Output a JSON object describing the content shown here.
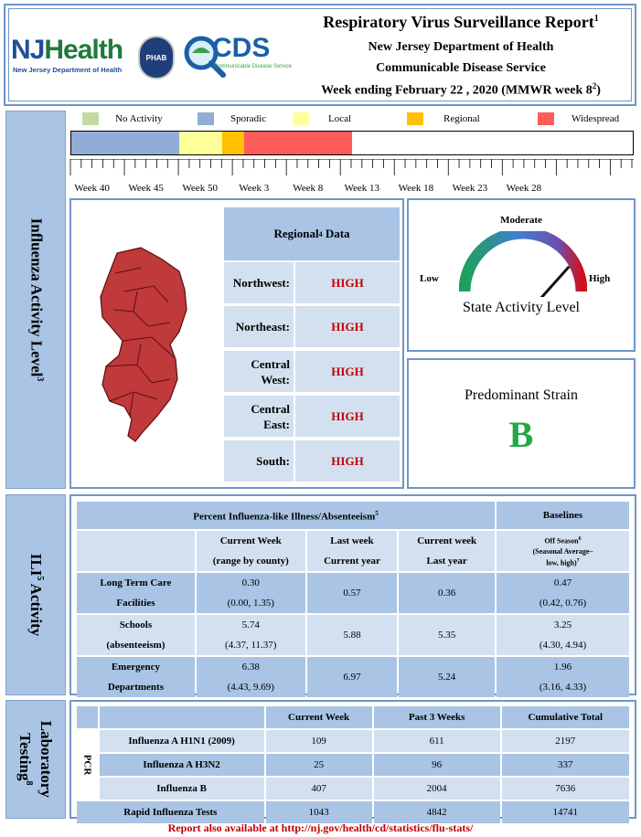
{
  "header": {
    "title": "Respiratory Virus Surveillance Report",
    "title_sup": "1",
    "line2": "New Jersey Department of Health",
    "line3": "Communicable Disease Service",
    "line4": "Week ending February 22 , 2020 (MMWR week 8",
    "line4_sup": "2",
    "line4_end": ")",
    "logo_nj_a": "NJ",
    "logo_nj_b": "Health",
    "logo_nj_sub": "New Jersey Department of Health",
    "logo_phab": "PHAB",
    "logo_cds": "CDS",
    "logo_cds_sub": "Communicable Disease Service"
  },
  "influenza_section": {
    "side_label": "Influenza Activity Level",
    "side_sup": "3",
    "legend": [
      {
        "label": "No Activity",
        "color": "#c3dba3"
      },
      {
        "label": "Sporadic",
        "color": "#92add5"
      },
      {
        "label": "Local",
        "color": "#ffff99"
      },
      {
        "label": "Regional",
        "color": "#ffc000"
      },
      {
        "label": "Widespread",
        "color": "#ff5b5b"
      }
    ],
    "timeline_weeks": [
      "Week 40",
      "Week 45",
      "Week 50",
      "Week 3",
      "Week 8",
      "Week 13",
      "Week 18",
      "Week 23",
      "Week 28"
    ],
    "timeline_segments": [
      {
        "level": "Sporadic",
        "weeks": 10,
        "color": "#92add5"
      },
      {
        "level": "Local",
        "weeks": 4,
        "color": "#ffff99"
      },
      {
        "level": "Regional",
        "weeks": 2,
        "color": "#ffc000"
      },
      {
        "level": "Widespread",
        "weeks": 10,
        "color": "#ff5b5b"
      }
    ],
    "regional": {
      "title": "Regional",
      "title_sup": "4",
      "title_end": " Data",
      "rows": [
        {
          "name": "Northwest:",
          "value": "HIGH"
        },
        {
          "name": "Northeast:",
          "value": "HIGH"
        },
        {
          "name": "Central West:",
          "value": "HIGH"
        },
        {
          "name": "Central East:",
          "value": "HIGH"
        },
        {
          "name": "South:",
          "value": "HIGH"
        }
      ]
    },
    "gauge": {
      "top_label": "Moderate",
      "low_label": "Low",
      "high_label": "High",
      "caption": "State Activity Level",
      "level": "High"
    },
    "strain": {
      "title": "Predominant Strain",
      "value": "B",
      "color": "#22a845"
    }
  },
  "ili_section": {
    "side_label": "ILI",
    "side_sup": "5",
    "side_end": " Activity",
    "header_main": "Percent Influenza-like Illness/Absenteeism",
    "header_main_sup": "5",
    "header_baselines": "Baselines",
    "col_current_week": [
      "Current Week",
      "(range by county)"
    ],
    "col_last_week": [
      "Last week",
      "Current year"
    ],
    "col_current_week_last_year": [
      "Current week",
      "Last year"
    ],
    "col_baseline": [
      "Off Season",
      "(Seasonal Average–",
      "low, high)"
    ],
    "col_baseline_sup1": "6",
    "col_baseline_sup2": "7",
    "rows": [
      {
        "label": [
          "Long Term Care",
          "Facilities"
        ],
        "current": "0.30",
        "range": "(0.00, 1.35)",
        "last_week": "0.57",
        "last_year": "0.36",
        "baseline": "0.47",
        "baseline_range": "(0.42, 0.76)"
      },
      {
        "label": [
          "Schools",
          "(absenteeism)"
        ],
        "current": "5.74",
        "range": "(4.37, 11.37)",
        "last_week": "5.88",
        "last_year": "5.35",
        "baseline": "3.25",
        "baseline_range": "(4.30, 4.94)"
      },
      {
        "label": [
          "Emergency",
          "Departments"
        ],
        "current": "6.38",
        "range": "(4.43, 9.69)",
        "last_week": "6.97",
        "last_year": "5.24",
        "baseline": "1.96",
        "baseline_range": "(3.16, 4.33)"
      }
    ]
  },
  "lab_section": {
    "side_label": "Laboratory",
    "side_label2": "Testing",
    "side_sup": "8",
    "pcr_label": "PCR",
    "columns": [
      "Current Week",
      "Past 3 Weeks",
      "Cumulative Total"
    ],
    "rows": [
      {
        "name": "Influenza A H1N1 (2009)",
        "current": "109",
        "past3": "611",
        "total": "2197"
      },
      {
        "name": "Influenza A H3N2",
        "current": "25",
        "past3": "96",
        "total": "337"
      },
      {
        "name": "Influenza B",
        "current": "407",
        "past3": "2004",
        "total": "7636"
      },
      {
        "name": "Rapid Influenza Tests",
        "current": "1043",
        "past3": "4842",
        "total": "14741"
      }
    ]
  },
  "footer": {
    "text": "Report also available at http://nj.gov/health/cd/statistics/flu-stats/",
    "color": "#c00000"
  }
}
